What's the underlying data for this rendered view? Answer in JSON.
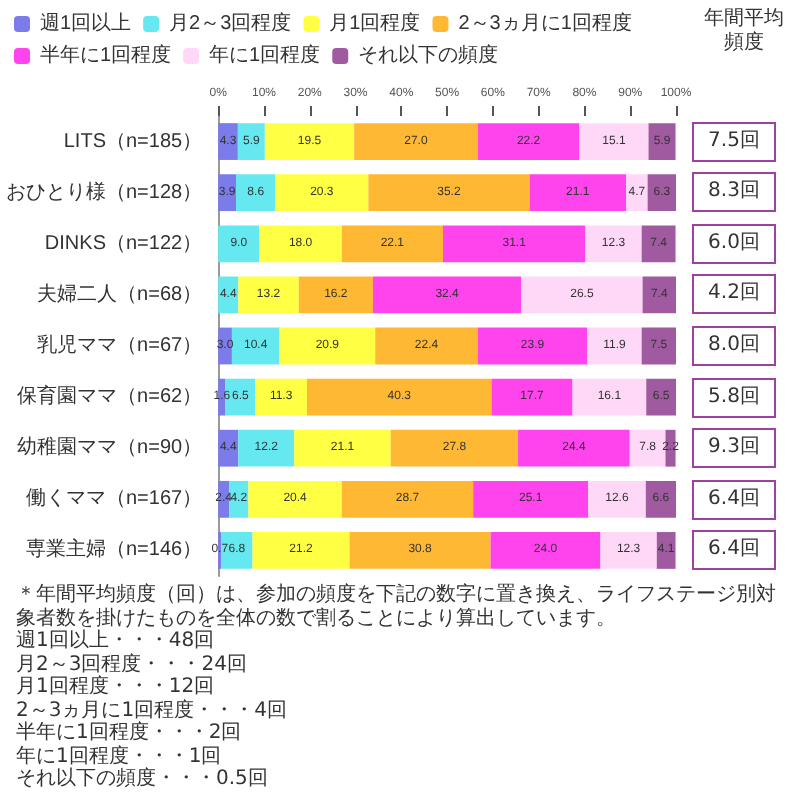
{
  "chart_data": {
    "type": "bar",
    "orientation": "horizontal",
    "stacked": true,
    "legend": "top",
    "xlim": [
      0,
      100
    ],
    "xticks": [
      {
        "value": 0,
        "label": "0%"
      },
      {
        "value": 10,
        "label": "10%"
      },
      {
        "value": 20,
        "label": "20%"
      },
      {
        "value": 30,
        "label": "30%"
      },
      {
        "value": 40,
        "label": "40%"
      },
      {
        "value": 50,
        "label": "50%"
      },
      {
        "value": 60,
        "label": "60%"
      },
      {
        "value": 70,
        "label": "70%"
      },
      {
        "value": 80,
        "label": "80%"
      },
      {
        "value": 90,
        "label": "90%"
      },
      {
        "value": 100,
        "label": "100%"
      }
    ],
    "categories": [
      "LITS（n=185）",
      "おひとり様（n=128）",
      "DINKS（n=122）",
      "夫婦二人（n=68）",
      "乳児ママ（n=67）",
      "保育園ママ（n=62）",
      "幼稚園ママ（n=90）",
      "働くママ（n=167）",
      "専業主婦（n=146）"
    ],
    "series": [
      {
        "name": "週1回以上",
        "color": "#7b7bea",
        "values": [
          4.3,
          3.9,
          null,
          null,
          3.0,
          1.6,
          4.4,
          2.4,
          0.7
        ],
        "value_labels": [
          "4.3",
          "3.9",
          null,
          null,
          "3.0",
          "1.6",
          "4.4",
          "2.4",
          "0.7"
        ]
      },
      {
        "name": "月2～3回程度",
        "color": "#66e8f0",
        "values": [
          5.9,
          8.6,
          9.0,
          4.4,
          10.4,
          6.5,
          12.2,
          4.2,
          6.8
        ],
        "value_labels": [
          "5.9",
          "8.6",
          "9.0",
          "4.4",
          "10.4",
          "6.5",
          "12.2",
          "4.2",
          "6.8"
        ]
      },
      {
        "name": "月1回程度",
        "color": "#ffff44",
        "values": [
          19.5,
          20.3,
          18.0,
          13.2,
          20.9,
          11.3,
          21.1,
          20.4,
          21.2
        ],
        "value_labels": [
          "19.5",
          "20.3",
          "18.0",
          "13.2",
          "20.9",
          "11.3",
          "21.1",
          "20.4",
          "21.2"
        ]
      },
      {
        "name": "2～3ヵ月に1回程度",
        "color": "#ffb833",
        "values": [
          27.0,
          35.2,
          22.1,
          16.2,
          22.4,
          40.3,
          27.8,
          28.7,
          30.8
        ],
        "value_labels": [
          "27.0",
          "35.2",
          "22.1",
          "16.2",
          "22.4",
          "40.3",
          "27.8",
          "28.7",
          "30.8"
        ]
      },
      {
        "name": "半年に1回程度",
        "color": "#ff44ee",
        "values": [
          22.2,
          21.1,
          31.1,
          32.4,
          23.9,
          17.7,
          24.4,
          25.1,
          24.0
        ],
        "value_labels": [
          "22.2",
          "21.1",
          "31.1",
          "32.4",
          "23.9",
          "17.7",
          "24.4",
          "25.1",
          "24.0"
        ]
      },
      {
        "name": "年に1回程度",
        "color": "#ffd8f8",
        "values": [
          15.1,
          4.7,
          12.3,
          26.5,
          11.9,
          16.1,
          7.8,
          12.6,
          12.3
        ],
        "value_labels": [
          "15.1",
          "4.7",
          "12.3",
          "26.5",
          "11.9",
          "16.1",
          "7.8",
          "12.6",
          "12.3"
        ]
      },
      {
        "name": "それ以下の頻度",
        "color": "#a05aa0",
        "values": [
          5.9,
          6.3,
          7.4,
          7.4,
          7.5,
          6.5,
          2.2,
          6.6,
          4.1
        ],
        "value_labels": [
          "5.9",
          "6.3",
          "7.4",
          "7.4",
          "7.5",
          "6.5",
          "2.2",
          "6.6",
          "4.1"
        ]
      }
    ],
    "annotations": [
      "年間平均頻度",
      "7.5回",
      "8.3回",
      "6.0回",
      "4.2回",
      "8.0回",
      "5.8回",
      "9.3回",
      "6.4回",
      "6.4回",
      "＊年間平均頻度（回）は、参加の頻度を下記の数字に置き換え、ライフステージ別対象者数を掛けたものを全体の数で割ることにより算出しています。",
      "週1回以上・・・48回",
      "月2～3回程度・・・24回",
      "月1回程度・・・12回",
      "2～3ヵ月に1回程度・・・4回",
      "半年に1回程度・・・2回",
      "年に1回程度・・・1回",
      "それ以下の頻度・・・0.5回"
    ]
  }
}
